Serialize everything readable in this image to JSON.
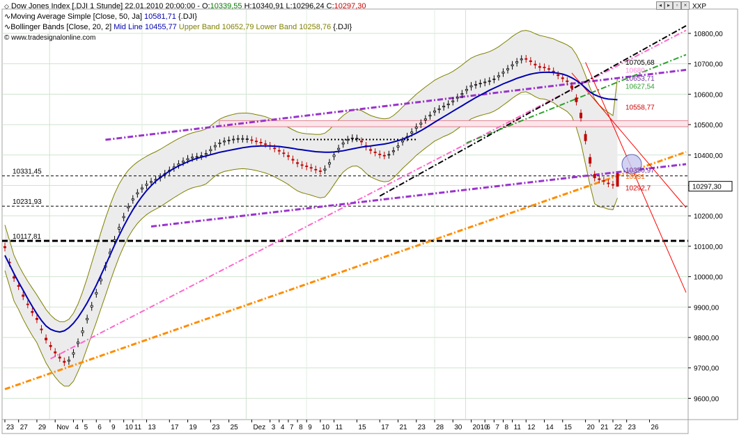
{
  "header": {
    "symbol": "Dow Jones Index [.DJI",
    "interval": "1 Stunde]",
    "datetime": "22.01.2010 20:00:00 -",
    "open_label": "O:",
    "open": "10339,55",
    "high_label": "H:",
    "high": "10340,91",
    "low_label": "L:",
    "low": "10296,24",
    "close_label": "C:",
    "close": "10297,30",
    "ma_prefix": "Moving Average Simple [Close, 50, Ja]",
    "ma_value": "10581,71",
    "ma_suffix": "{.DJI}",
    "bb_prefix": "Bollinger Bands [Close, 20, 2]",
    "bb_mid_label": "Mid Line",
    "bb_mid": "10455,77",
    "bb_upper_label": "Upper Band",
    "bb_upper": "10652,79",
    "bb_lower_label": "Lower Band",
    "bb_lower": "10258,76",
    "bb_suffix": "{.DJI}",
    "copyright": "© www.tradesignalonline.com",
    "axis_tag": "XXP"
  },
  "colors": {
    "open": "#008000",
    "close": "#d00000",
    "ma": "#0000b0",
    "bb_upper": "#808000",
    "bb_lower": "#808000",
    "candle_up": "#000000",
    "candle_down": "#c00000"
  },
  "chart_data": {
    "type": "candlestick",
    "title": "Dow Jones Index [.DJI 1 Stunde]",
    "ylim": [
      9530,
      10880
    ],
    "y_ticks": [
      9600,
      9700,
      9800,
      9900,
      10000,
      10100,
      10200,
      10300,
      10400,
      10500,
      10600,
      10700,
      10800
    ],
    "y_tick_labels": [
      "9600,00",
      "9700,00",
      "9800,00",
      "9900,00",
      "10000,00",
      "10100,00",
      "10200,00",
      "10300,00",
      "10400,00",
      "10500,00",
      "10600,00",
      "10700,00",
      "10800,00"
    ],
    "x_labels": [
      "23",
      "27",
      "29",
      "Nov",
      "4",
      "5",
      "6",
      "9",
      "10",
      "11",
      "13",
      "17",
      "19",
      "23",
      "25",
      "Dez",
      "3",
      "4",
      "7",
      "8",
      "9",
      "10",
      "11",
      "15",
      "17",
      "21",
      "23",
      "28",
      "30",
      "2010",
      "6",
      "7",
      "8",
      "11",
      "12",
      "14",
      "15",
      "20",
      "21",
      "22",
      "23",
      "26"
    ],
    "x_label_index": [
      0,
      3,
      7,
      11,
      15,
      17,
      20,
      23,
      26,
      28,
      31,
      36,
      40,
      45,
      49,
      54,
      58,
      60,
      62,
      64,
      66,
      69,
      72,
      77,
      82,
      86,
      90,
      94,
      98,
      102,
      105,
      107,
      109,
      111,
      114,
      118,
      122,
      127,
      130,
      133,
      136,
      141
    ],
    "gridlines": true,
    "price_label": "10297,30",
    "horizontal_levels": [
      {
        "value": 10331.45,
        "label": "10331,45",
        "style": "dashed-thin"
      },
      {
        "value": 10231.93,
        "label": "10231,93",
        "style": "dashed-thin"
      },
      {
        "value": 10117.81,
        "label": "10117,81",
        "style": "dashed-thick"
      },
      {
        "value": 10451,
        "label": "",
        "style": "dotted"
      }
    ],
    "level_annotations": [
      {
        "value": 10705.68,
        "label": "10705,68",
        "color": "#000000"
      },
      {
        "value": 10680,
        "label": "10680,",
        "color": "#ff88dd"
      },
      {
        "value": 10653.71,
        "label": "10653,71",
        "color": "#7030a0"
      },
      {
        "value": 10627.54,
        "label": "10627,54",
        "color": "#2ca02c"
      },
      {
        "value": 10558.77,
        "label": "10558,77",
        "color": "#d00000"
      },
      {
        "value": 10350.97,
        "label": "10350,97",
        "color": "#7030a0"
      },
      {
        "value": 10331,
        "label": "10331",
        "color": "#ff6600"
      },
      {
        "value": 10292.7,
        "label": "10292,7",
        "color": "#d00000"
      }
    ],
    "resistance_band": [
      10493,
      10513
    ],
    "trend_lines": [
      {
        "name": "",
        "color": "#ff66cc",
        "p1": [
          10,
          9730
        ],
        "p2": [
          149,
          10810
        ]
      },
      {
        "name": "",
        "color": "#ff8c00",
        "p1": [
          0,
          9630
        ],
        "p2": [
          149,
          10410
        ]
      },
      {
        "name": "",
        "color": "#9933cc",
        "p1": [
          22,
          10450
        ],
        "p2": [
          149,
          10680
        ]
      },
      {
        "name": "",
        "color": "#9933cc",
        "p1": [
          32,
          10165
        ],
        "p2": [
          149,
          10370
        ]
      },
      {
        "name": "",
        "color": "#000000",
        "p1": [
          82,
          10265
        ],
        "p2": [
          149,
          10825
        ]
      },
      {
        "name": "",
        "color": "#2ca02c",
        "p1": [
          101,
          10440
        ],
        "p2": [
          149,
          10730
        ]
      },
      {
        "name": "",
        "color": "#ff0000",
        "p1": [
          127,
          10705
        ],
        "p2": [
          149,
          9948
        ]
      },
      {
        "name": "",
        "color": "#ff0000",
        "p1": [
          124,
          10670
        ],
        "p2": [
          149,
          10227
        ]
      }
    ],
    "close": [
      10095,
      10045,
      9995,
      9968,
      9935,
      9908,
      9882,
      9859,
      9825,
      9792,
      9770,
      9749,
      9732,
      9718,
      9726,
      9750,
      9785,
      9822,
      9863,
      9905,
      9948,
      9992,
      10036,
      10081,
      10122,
      10162,
      10198,
      10230,
      10256,
      10276,
      10292,
      10304,
      10313,
      10320,
      10328,
      10339,
      10350,
      10361,
      10371,
      10380,
      10388,
      10393,
      10395,
      10398,
      10405,
      10418,
      10431,
      10440,
      10446,
      10449,
      10452,
      10454,
      10454,
      10453,
      10449,
      10445,
      10441,
      10436,
      10429,
      10421,
      10413,
      10405,
      10395,
      10383,
      10372,
      10366,
      10362,
      10357,
      10351,
      10347,
      10354,
      10375,
      10400,
      10422,
      10440,
      10451,
      10456,
      10455,
      10443,
      10427,
      10415,
      10408,
      10401,
      10398,
      10402,
      10414,
      10430,
      10447,
      10461,
      10476,
      10492,
      10505,
      10519,
      10531,
      10545,
      10552,
      10561,
      10568,
      10578,
      10590,
      10602,
      10616,
      10628,
      10632,
      10636,
      10640,
      10644,
      10650,
      10661,
      10673,
      10684,
      10697,
      10707,
      10716,
      10716,
      10707,
      10696,
      10688,
      10688,
      10682,
      10674,
      10661,
      10651,
      10641,
      10620,
      10575,
      10522,
      10447,
      10373,
      10325,
      10319,
      10314,
      10306,
      10301,
      10297
    ],
    "open": [
      10099,
      10048,
      10000,
      9971,
      9940,
      9910,
      9886,
      9863,
      9828,
      9798,
      9774,
      9753,
      9736,
      9722,
      9722,
      9745,
      9780,
      9816,
      9858,
      9900,
      9943,
      9986,
      10031,
      10075,
      10117,
      10156,
      10194,
      10226,
      10252,
      10272,
      10288,
      10300,
      10310,
      10317,
      10325,
      10335,
      10346,
      10357,
      10367,
      10376,
      10384,
      10390,
      10393,
      10396,
      10402,
      10414,
      10427,
      10437,
      10443,
      10447,
      10450,
      10452,
      10453,
      10452,
      10450,
      10446,
      10442,
      10437,
      10431,
      10423,
      10415,
      10407,
      10398,
      10386,
      10375,
      10368,
      10364,
      10359,
      10353,
      10348,
      10350,
      10370,
      10395,
      10418,
      10436,
      10448,
      10454,
      10455,
      10446,
      10431,
      10418,
      10410,
      10403,
      10399,
      10400,
      10411,
      10426,
      10443,
      10457,
      10472,
      10488,
      10501,
      10515,
      10528,
      10541,
      10549,
      10558,
      10565,
      10575,
      10587,
      10599,
      10612,
      10624,
      10630,
      10634,
      10638,
      10642,
      10648,
      10657,
      10669,
      10680,
      10693,
      10703,
      10713,
      10717,
      10710,
      10699,
      10691,
      10689,
      10684,
      10676,
      10664,
      10654,
      10644,
      10628,
      10588,
      10538,
      10468,
      10392,
      10336,
      10322,
      10316,
      10308,
      10303,
      10339.55
    ],
    "high": [
      10112,
      10060,
      10012,
      9983,
      9951,
      9922,
      9898,
      9875,
      9841,
      9810,
      9786,
      9765,
      9748,
      9734,
      9738,
      9762,
      9797,
      9834,
      9875,
      9917,
      9960,
      10004,
      10048,
      10093,
      10134,
      10174,
      10210,
      10242,
      10268,
      10288,
      10304,
      10316,
      10325,
      10332,
      10340,
      10351,
      10362,
      10373,
      10383,
      10392,
      10400,
      10405,
      10407,
      10410,
      10417,
      10430,
      10443,
      10452,
      10458,
      10461,
      10464,
      10466,
      10466,
      10465,
      10462,
      10458,
      10454,
      10449,
      10443,
      10435,
      10427,
      10419,
      10410,
      10398,
      10387,
      10380,
      10376,
      10371,
      10365,
      10360,
      10366,
      10387,
      10412,
      10434,
      10452,
      10463,
      10468,
      10467,
      10458,
      10443,
      10430,
      10422,
      10415,
      10411,
      10414,
      10426,
      10442,
      10459,
      10473,
      10488,
      10504,
      10517,
      10531,
      10543,
      10557,
      10564,
      10573,
      10580,
      10590,
      10602,
      10614,
      10628,
      10640,
      10644,
      10648,
      10652,
      10656,
      10662,
      10673,
      10685,
      10696,
      10709,
      10719,
      10728,
      10729,
      10722,
      10711,
      10703,
      10701,
      10696,
      10688,
      10676,
      10666,
      10656,
      10640,
      10600,
      10550,
      10480,
      10404,
      10348,
      10334,
      10328,
      10320,
      10315,
      10340.91
    ],
    "low": [
      10083,
      10033,
      9983,
      9956,
      9923,
      9896,
      9870,
      9847,
      9813,
      9780,
      9758,
      9737,
      9720,
      9706,
      9710,
      9733,
      9768,
      9804,
      9846,
      9888,
      9931,
      9974,
      10019,
      10063,
      10105,
      10144,
      10182,
      10214,
      10240,
      10260,
      10276,
      10288,
      10298,
      10305,
      10313,
      10323,
      10334,
      10345,
      10355,
      10364,
      10372,
      10378,
      10381,
      10384,
      10390,
      10402,
      10415,
      10425,
      10431,
      10435,
      10438,
      10440,
      10441,
      10440,
      10437,
      10433,
      10429,
      10424,
      10417,
      10409,
      10401,
      10393,
      10383,
      10371,
      10360,
      10354,
      10350,
      10345,
      10339,
      10335,
      10338,
      10358,
      10383,
      10406,
      10424,
      10436,
      10442,
      10443,
      10431,
      10415,
      10403,
      10396,
      10389,
      10386,
      10388,
      10399,
      10414,
      10431,
      10445,
      10460,
      10476,
      10489,
      10503,
      10516,
      10529,
      10537,
      10546,
      10553,
      10563,
      10575,
      10587,
      10600,
      10612,
      10618,
      10622,
      10626,
      10630,
      10636,
      10645,
      10657,
      10668,
      10681,
      10691,
      10701,
      10704,
      10695,
      10684,
      10676,
      10676,
      10670,
      10662,
      10649,
      10639,
      10629,
      10608,
      10563,
      10510,
      10435,
      10361,
      10313,
      10307,
      10302,
      10294,
      10289,
      10296.24
    ],
    "ma": [
      10070,
      10040,
      10010,
      9982,
      9955,
      9928,
      9902,
      9878,
      9856,
      9838,
      9827,
      9821,
      9818,
      9822,
      9832,
      9847,
      9866,
      9889,
      9914,
      9942,
      9972,
      10004,
      10037,
      10071,
      10104,
      10136,
      10166,
      10194,
      10220,
      10243,
      10264,
      10283,
      10299,
      10314,
      10326,
      10337,
      10347,
      10356,
      10364,
      10371,
      10378,
      10384,
      10389,
      10393,
      10397,
      10401,
      10405,
      10409,
      10412,
      10415,
      10418,
      10421,
      10424,
      10426,
      10428,
      10429,
      10430,
      10430,
      10430,
      10429,
      10428,
      10426,
      10424,
      10422,
      10419,
      10417,
      10415,
      10413,
      10411,
      10410,
      10409,
      10409,
      10410,
      10412,
      10414,
      10417,
      10420,
      10423,
      10426,
      10428,
      10430,
      10432,
      10434,
      10436,
      10439,
      10443,
      10447,
      10452,
      10458,
      10465,
      10472,
      10480,
      10489,
      10498,
      10508,
      10517,
      10526,
      10535,
      10544,
      10553,
      10562,
      10571,
      10580,
      10589,
      10597,
      10605,
      10613,
      10620,
      10627,
      10634,
      10640,
      10646,
      10652,
      10657,
      10662,
      10666,
      10669,
      10671,
      10672,
      10672,
      10671,
      10669,
      10666,
      10661,
      10654,
      10645,
      10634,
      10621,
      10607,
      10598,
      10592,
      10587,
      10584,
      10583,
      10581.71
    ],
    "bb_upper": [
      10170,
      10120,
      10070,
      10038,
      10010,
      9985,
      9962,
      9940,
      9916,
      9892,
      9874,
      9860,
      9852,
      9852,
      9860,
      9880,
      9910,
      9950,
      9995,
      10045,
      10095,
      10145,
      10192,
      10235,
      10273,
      10305,
      10330,
      10350,
      10365,
      10377,
      10387,
      10396,
      10404,
      10411,
      10419,
      10428,
      10437,
      10446,
      10454,
      10461,
      10468,
      10473,
      10477,
      10480,
      10486,
      10496,
      10508,
      10518,
      10525,
      10530,
      10534,
      10537,
      10538,
      10538,
      10536,
      10533,
      10530,
      10526,
      10520,
      10513,
      10506,
      10499,
      10491,
      10483,
      10476,
      10472,
      10470,
      10469,
      10468,
      10468,
      10472,
      10484,
      10500,
      10516,
      10530,
      10541,
      10548,
      10550,
      10546,
      10538,
      10530,
      10525,
      10521,
      10519,
      10521,
      10530,
      10543,
      10558,
      10572,
      10586,
      10600,
      10612,
      10624,
      10635,
      10646,
      10654,
      10661,
      10667,
      10675,
      10685,
      10696,
      10708,
      10719,
      10726,
      10731,
      10735,
      10740,
      10747,
      10756,
      10767,
      10778,
      10790,
      10800,
      10808,
      10810,
      10806,
      10799,
      10793,
      10790,
      10786,
      10782,
      10775,
      10769,
      10762,
      10752,
      10730,
      10700,
      10662,
      10620,
      10585,
      10565,
      10550,
      10540,
      10530,
      10652.79
    ],
    "bb_lower": [
      10020,
      9970,
      9920,
      9892,
      9860,
      9832,
      9806,
      9783,
      9749,
      9716,
      9692,
      9670,
      9652,
      9640,
      9640,
      9656,
      9688,
      9724,
      9766,
      9808,
      9850,
      9894,
      9938,
      9983,
      10025,
      10065,
      10100,
      10130,
      10155,
      10175,
      10191,
      10204,
      10214,
      10222,
      10230,
      10240,
      10250,
      10260,
      10269,
      10278,
      10286,
      10292,
      10296,
      10299,
      10305,
      10318,
      10331,
      10340,
      10346,
      10349,
      10352,
      10354,
      10355,
      10354,
      10352,
      10349,
      10345,
      10341,
      10335,
      10328,
      10320,
      10312,
      10303,
      10292,
      10282,
      10276,
      10272,
      10268,
      10263,
      10259,
      10262,
      10280,
      10303,
      10325,
      10344,
      10356,
      10363,
      10364,
      10355,
      10340,
      10328,
      10321,
      10315,
      10312,
      10314,
      10325,
      10340,
      10356,
      10370,
      10384,
      10399,
      10411,
      10423,
      10434,
      10446,
      10453,
      10461,
      10467,
      10475,
      10486,
      10497,
      10508,
      10519,
      10525,
      10530,
      10534,
      10538,
      10544,
      10553,
      10564,
      10575,
      10587,
      10597,
      10606,
      10608,
      10601,
      10592,
      10585,
      10584,
      10579,
      10572,
      10561,
      10552,
      10543,
      10527,
      10490,
      10440,
      10370,
      10300,
      10240,
      10230,
      10227,
      10222,
      10220,
      10258.76
    ]
  }
}
